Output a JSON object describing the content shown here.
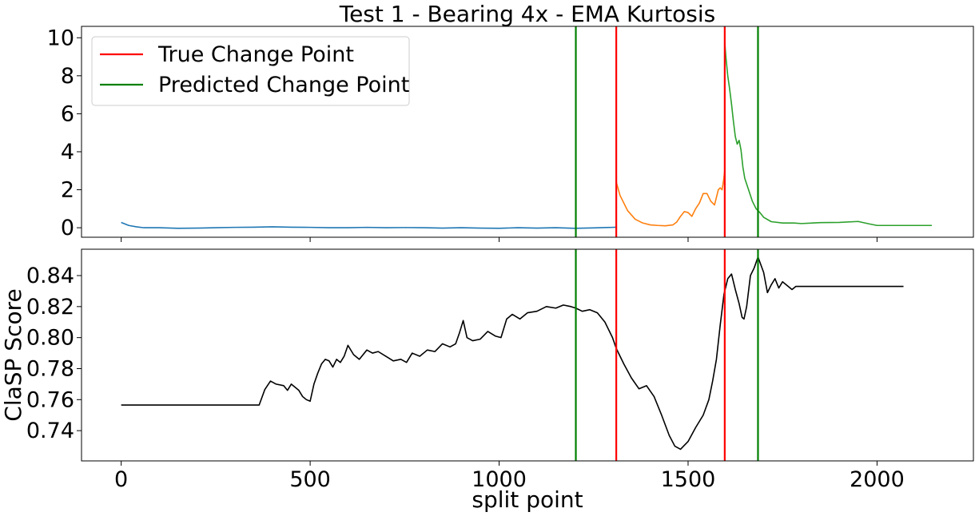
{
  "chart_data": {
    "type": "line",
    "title": "Test 1 - Bearing 4x - EMA Kurtosis",
    "xlabel": "split point",
    "xlim": [
      -105,
      2255
    ],
    "xticks": [
      0,
      500,
      1000,
      1500,
      2000
    ],
    "xtick_labels": [
      "0",
      "500",
      "1000",
      "1500",
      "2000"
    ],
    "legend": {
      "placement": "top-left",
      "entries": [
        {
          "label": "True Change Point",
          "color": "#ff0000"
        },
        {
          "label": "Predicted Change Point",
          "color": "#008000"
        }
      ]
    },
    "true_change_points": [
      1310,
      1597
    ],
    "predicted_change_points": [
      1203,
      1685
    ],
    "grid": false,
    "panels": [
      {
        "name": "ema-kurtosis",
        "ylabel": "",
        "ylim": [
          -0.5,
          10.6
        ],
        "yticks": [
          0,
          2,
          4,
          6,
          8,
          10
        ],
        "ytick_labels": [
          "0",
          "2",
          "4",
          "6",
          "8",
          "10"
        ],
        "series": [
          {
            "color": "#1f77b4",
            "x": [
              0,
              10,
              20,
              40,
              60,
              100,
              150,
              200,
              250,
              300,
              350,
              400,
              450,
              500,
              550,
              600,
              650,
              700,
              750,
              800,
              850,
              900,
              950,
              1000,
              1050,
              1100,
              1150,
              1200,
              1250,
              1300,
              1310
            ],
            "y": [
              0.28,
              0.2,
              0.12,
              0.05,
              0.0,
              0.0,
              -0.03,
              -0.02,
              0.0,
              0.02,
              0.03,
              0.05,
              0.03,
              0.02,
              0.0,
              0.0,
              0.02,
              0.0,
              0.01,
              0.0,
              -0.02,
              0.0,
              -0.02,
              -0.03,
              0.0,
              -0.02,
              0.0,
              -0.03,
              -0.01,
              0.02,
              0.03
            ]
          },
          {
            "color": "#ff7f0e",
            "x": [
              1310,
              1320,
              1340,
              1360,
              1380,
              1400,
              1420,
              1440,
              1460,
              1470,
              1480,
              1490,
              1500,
              1510,
              1520,
              1530,
              1540,
              1550,
              1560,
              1570,
              1580,
              1585,
              1590,
              1594,
              1597
            ],
            "y": [
              2.4,
              1.7,
              0.9,
              0.45,
              0.25,
              0.15,
              0.12,
              0.1,
              0.15,
              0.3,
              0.6,
              0.85,
              0.8,
              0.6,
              1.0,
              1.3,
              1.8,
              1.8,
              1.4,
              1.2,
              2.0,
              2.1,
              2.0,
              2.5,
              3.0
            ]
          },
          {
            "color": "#2ca02c",
            "x": [
              1597,
              1600,
              1605,
              1610,
              1615,
              1620,
              1625,
              1630,
              1635,
              1640,
              1645,
              1650,
              1660,
              1670,
              1680,
              1690,
              1700,
              1720,
              1750,
              1780,
              1800,
              1850,
              1900,
              1950,
              1980,
              2000,
              2050,
              2100,
              2145
            ],
            "y": [
              9.8,
              9.0,
              8.0,
              7.3,
              6.5,
              5.6,
              4.8,
              4.4,
              4.6,
              4.1,
              3.2,
              2.6,
              2.0,
              1.4,
              1.0,
              0.8,
              0.55,
              0.32,
              0.25,
              0.25,
              0.22,
              0.27,
              0.28,
              0.33,
              0.2,
              0.12,
              0.12,
              0.12,
              0.12
            ]
          }
        ]
      },
      {
        "name": "clasp-score",
        "ylabel": "ClaSP Score",
        "ylim": [
          0.7205,
          0.857
        ],
        "yticks": [
          0.74,
          0.76,
          0.78,
          0.8,
          0.82,
          0.84
        ],
        "ytick_labels": [
          "0.74",
          "0.76",
          "0.78",
          "0.80",
          "0.82",
          "0.84"
        ],
        "series": [
          {
            "color": "#000000",
            "x": [
              0,
              100,
              200,
              300,
              365,
              380,
              395,
              410,
              430,
              440,
              450,
              460,
              470,
              480,
              490,
              500,
              510,
              520,
              530,
              540,
              550,
              560,
              570,
              580,
              590,
              600,
              615,
              630,
              650,
              665,
              680,
              700,
              720,
              740,
              755,
              770,
              790,
              810,
              830,
              850,
              870,
              885,
              895,
              905,
              915,
              930,
              950,
              970,
              990,
              1005,
              1020,
              1035,
              1055,
              1075,
              1100,
              1125,
              1150,
              1170,
              1190,
              1203,
              1220,
              1240,
              1260,
              1280,
              1300,
              1310,
              1330,
              1350,
              1370,
              1390,
              1410,
              1430,
              1450,
              1465,
              1480,
              1500,
              1520,
              1540,
              1555,
              1565,
              1575,
              1585,
              1595,
              1605,
              1615,
              1625,
              1635,
              1643,
              1648,
              1655,
              1665,
              1675,
              1685,
              1700,
              1710,
              1720,
              1730,
              1740,
              1750,
              1760,
              1775,
              1785,
              1800,
              1900,
              2000,
              2070
            ],
            "y": [
              0.7565,
              0.7565,
              0.7565,
              0.7565,
              0.7565,
              0.7665,
              0.772,
              0.77,
              0.769,
              0.766,
              0.77,
              0.768,
              0.766,
              0.762,
              0.76,
              0.759,
              0.77,
              0.777,
              0.783,
              0.786,
              0.785,
              0.781,
              0.786,
              0.784,
              0.788,
              0.795,
              0.789,
              0.786,
              0.792,
              0.79,
              0.791,
              0.788,
              0.785,
              0.786,
              0.784,
              0.79,
              0.788,
              0.792,
              0.791,
              0.796,
              0.794,
              0.796,
              0.803,
              0.811,
              0.8,
              0.798,
              0.799,
              0.804,
              0.801,
              0.8,
              0.812,
              0.815,
              0.812,
              0.816,
              0.817,
              0.82,
              0.819,
              0.821,
              0.82,
              0.819,
              0.817,
              0.818,
              0.816,
              0.81,
              0.8,
              0.793,
              0.783,
              0.774,
              0.767,
              0.769,
              0.762,
              0.75,
              0.737,
              0.73,
              0.728,
              0.733,
              0.742,
              0.75,
              0.76,
              0.772,
              0.786,
              0.808,
              0.828,
              0.838,
              0.841,
              0.831,
              0.822,
              0.813,
              0.812,
              0.82,
              0.84,
              0.845,
              0.852,
              0.842,
              0.829,
              0.834,
              0.838,
              0.832,
              0.836,
              0.834,
              0.831,
              0.833,
              0.833,
              0.833,
              0.833,
              0.833
            ]
          }
        ]
      }
    ]
  }
}
